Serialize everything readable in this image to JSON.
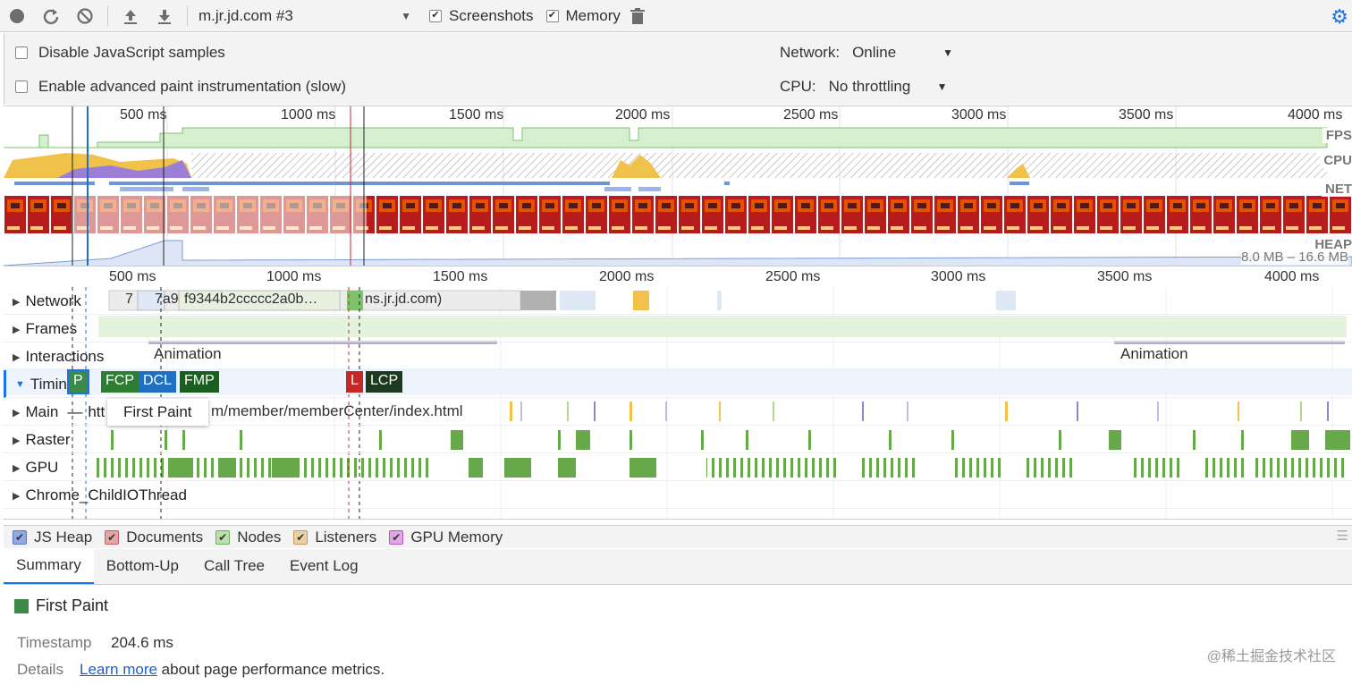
{
  "toolbar": {
    "target": "m.jr.jd.com #3",
    "screenshots_label": "Screenshots",
    "memory_label": "Memory"
  },
  "settings": {
    "disable_js_samples": "Disable JavaScript samples",
    "advanced_paint": "Enable advanced paint instrumentation (slow)",
    "network_label": "Network:",
    "network_value": "Online",
    "cpu_label": "CPU:",
    "cpu_value": "No throttling"
  },
  "overview": {
    "ticks": [
      "500 ms",
      "1000 ms",
      "1500 ms",
      "2000 ms",
      "2500 ms",
      "3000 ms",
      "3500 ms",
      "4000 ms"
    ],
    "fps_label": "FPS",
    "cpu_label": "CPU",
    "net_label": "NET",
    "heap_label": "HEAP",
    "heap_range": "8.0 MB – 16.6 MB"
  },
  "flame": {
    "ticks": [
      "500 ms",
      "1000 ms",
      "1500 ms",
      "2000 ms",
      "2500 ms",
      "3000 ms",
      "3500 ms",
      "4000 ms"
    ],
    "tracks": {
      "network": "Network",
      "frames": "Frames",
      "interactions": "Interactions",
      "timings": "Timings",
      "main": "Main",
      "raster": "Raster",
      "gpu": "GPU",
      "childio": "Chrome_ChildIOThread"
    },
    "network_items": {
      "a": "7",
      "b": "7a9",
      "c": "f9344b2ccccc2a0b…",
      "d": "ns.jr.jd.com)"
    },
    "animation_label_1": "Animation",
    "animation_label_2": "Animation",
    "main_url_left": "htt",
    "main_url_right": "m/member/memberCenter/index.html",
    "markers": {
      "fp": "P",
      "fcp": "FCP",
      "dcl": "DCL",
      "fmp": "FMP",
      "l": "L",
      "lcp": "LCP"
    },
    "tooltip": "First Paint"
  },
  "legend": {
    "js_heap": "JS Heap",
    "documents": "Documents",
    "nodes": "Nodes",
    "listeners": "Listeners",
    "gpu_memory": "GPU Memory"
  },
  "tabs": {
    "summary": "Summary",
    "bottom_up": "Bottom-Up",
    "call_tree": "Call Tree",
    "event_log": "Event Log"
  },
  "summary": {
    "title": "First Paint",
    "timestamp_label": "Timestamp",
    "timestamp_value": "204.6 ms",
    "details_label": "Details",
    "learn_more": "Learn more",
    "details_text": "about page performance metrics."
  },
  "watermark": "@稀土掘金技术社区",
  "colors": {
    "fp": "#3c8a4a",
    "fcp": "#2e7d32",
    "dcl": "#1f6fc5",
    "fmp": "#1b5e20",
    "load": "#c62828",
    "lcp": "#1b3a1e",
    "accent": "#1a73e8"
  }
}
